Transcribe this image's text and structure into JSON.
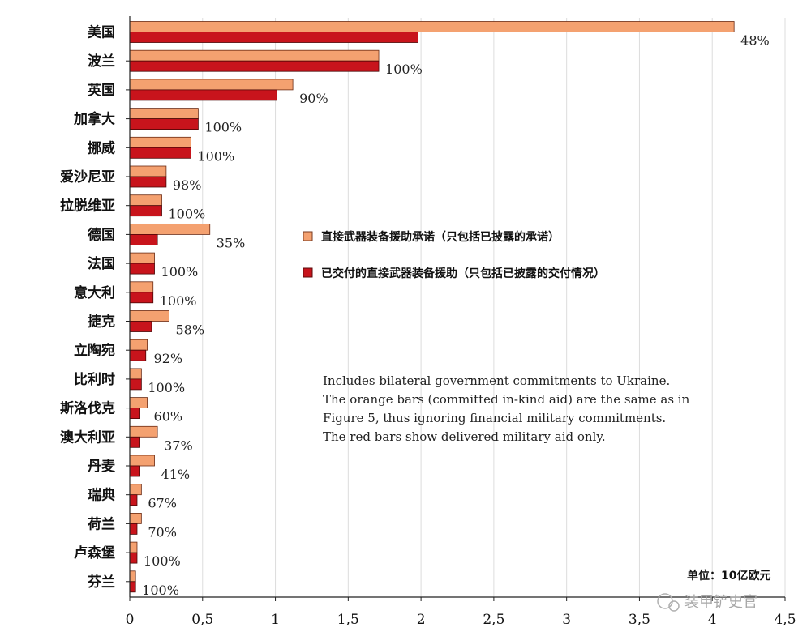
{
  "chart_data": {
    "type": "bar",
    "orientation": "horizontal",
    "categories": [
      "美国",
      "波兰",
      "英国",
      "加拿大",
      "挪威",
      "爱沙尼亚",
      "拉脱维亚",
      "德国",
      "法国",
      "意大利",
      "捷克",
      "立陶宛",
      "比利时",
      "斯洛伐克",
      "澳大利亚",
      "丹麦",
      "瑞典",
      "荷兰",
      "卢森堡",
      "芬兰"
    ],
    "series": [
      {
        "name": "直接武器装备援助承诺（只包括已披露的承诺）",
        "color": "#f4a170",
        "values": [
          4.15,
          1.71,
          1.12,
          0.47,
          0.42,
          0.25,
          0.22,
          0.55,
          0.17,
          0.16,
          0.27,
          0.12,
          0.08,
          0.12,
          0.19,
          0.17,
          0.08,
          0.08,
          0.05,
          0.04
        ]
      },
      {
        "name": "已交付的直接武器装备援助（只包括已披露的交付情况）",
        "color": "#c8141c",
        "values": [
          1.98,
          1.71,
          1.01,
          0.47,
          0.42,
          0.25,
          0.22,
          0.19,
          0.17,
          0.16,
          0.15,
          0.11,
          0.08,
          0.07,
          0.07,
          0.07,
          0.05,
          0.05,
          0.05,
          0.04
        ]
      }
    ],
    "data_labels": [
      "48%",
      "100%",
      "90%",
      "100%",
      "100%",
      "98%",
      "100%",
      "35%",
      "100%",
      "100%",
      "58%",
      "92%",
      "100%",
      "60%",
      "37%",
      "41%",
      "67%",
      "70%",
      "100%",
      "100%"
    ],
    "xlim": [
      0,
      4.5
    ],
    "xticks": [
      0,
      0.5,
      1,
      1.5,
      2,
      2.5,
      3,
      3.5,
      4,
      4.5
    ],
    "xtick_labels": [
      "0",
      "0,5",
      "1",
      "1,5",
      "2",
      "2,5",
      "3",
      "3,5",
      "4",
      "4,5"
    ],
    "grid": "vertical",
    "legend_position": "center-right",
    "note_lines": [
      "Includes bilateral government commitments to Ukraine.",
      "The orange bars (committed in-kind aid) are the same as in",
      "Figure 5, thus ignoring financial military commitments.",
      "The red bars show delivered military aid only."
    ],
    "unit": "单位：10亿欧元"
  },
  "watermark": "装甲铲史官"
}
